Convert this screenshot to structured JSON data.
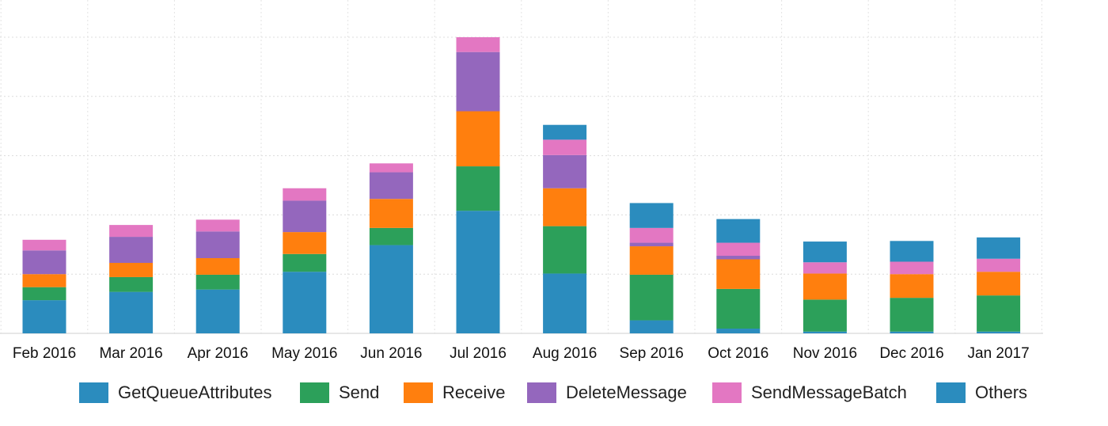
{
  "chart_data": {
    "type": "bar",
    "stacked": true,
    "categories": [
      "Feb 2016",
      "Mar 2016",
      "Apr 2016",
      "May 2016",
      "Jun 2016",
      "Jul 2016",
      "Aug 2016",
      "Sep 2016",
      "Oct 2016",
      "Nov 2016",
      "Dec 2016",
      "Jan 2017"
    ],
    "series": [
      {
        "name": "GetQueueAttributes",
        "color": "#2b8cbe",
        "values": [
          56,
          70,
          74,
          104,
          149,
          207,
          101,
          22,
          8,
          3,
          3,
          3
        ]
      },
      {
        "name": "Send",
        "color": "#2ca05a",
        "values": [
          22,
          25,
          25,
          30,
          29,
          75,
          80,
          77,
          67,
          54,
          57,
          61
        ]
      },
      {
        "name": "Receive",
        "color": "#ff7f0e",
        "values": [
          22,
          24,
          28,
          37,
          49,
          93,
          64,
          48,
          50,
          44,
          40,
          40
        ]
      },
      {
        "name": "DeleteMessage",
        "color": "#9467bd",
        "values": [
          40,
          44,
          45,
          53,
          45,
          100,
          56,
          6,
          6,
          0,
          0,
          0
        ]
      },
      {
        "name": "SendMessageBatch",
        "color": "#e377c2",
        "values": [
          18,
          20,
          20,
          21,
          15,
          25,
          26,
          25,
          22,
          19,
          21,
          22
        ]
      },
      {
        "name": "Others",
        "color": "#2b8cbe",
        "values": [
          0,
          0,
          0,
          0,
          0,
          0,
          25,
          42,
          40,
          35,
          35,
          36
        ]
      }
    ],
    "ylim": [
      0,
      500
    ],
    "y_gridlines": [
      0,
      100,
      200,
      300,
      400,
      500
    ],
    "y_tick_labels_visible": false,
    "grid": true,
    "legend_position": "bottom",
    "title": "",
    "xlabel": "",
    "ylabel": ""
  }
}
